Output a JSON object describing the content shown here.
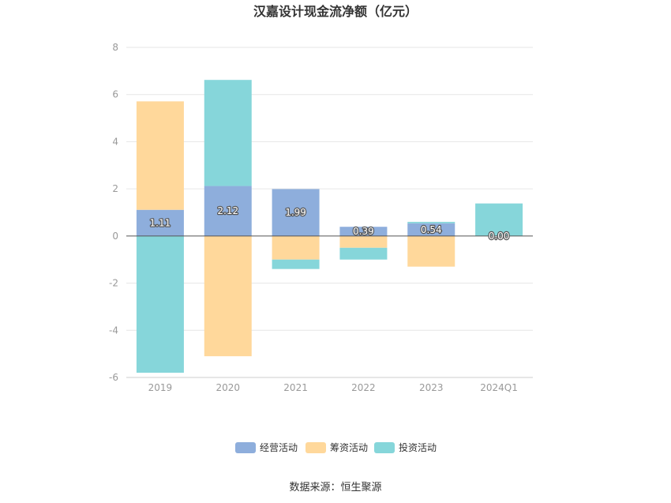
{
  "chart_data": {
    "type": "bar",
    "stacked": true,
    "title": "汉嘉设计现金流净额（亿元）",
    "xlabel": "",
    "ylabel": "",
    "categories": [
      "2019",
      "2020",
      "2021",
      "2022",
      "2023",
      "2024Q1"
    ],
    "ylim": [
      -6,
      8
    ],
    "yticks": [
      8,
      6,
      4,
      2,
      0,
      -2,
      -4,
      -6
    ],
    "grid": true,
    "legend_position": "bottom",
    "series": [
      {
        "name": "经营活动",
        "color": "#8eaedc",
        "values": [
          1.11,
          2.12,
          1.99,
          0.39,
          0.54,
          0.0
        ]
      },
      {
        "name": "筹资活动",
        "color": "#ffd89b",
        "values": [
          4.6,
          -5.1,
          -1.0,
          -0.5,
          -1.3,
          0.0
        ]
      },
      {
        "name": "投资活动",
        "color": "#86d6da",
        "values": [
          -5.8,
          4.5,
          -0.4,
          -0.5,
          0.06,
          1.38
        ]
      }
    ],
    "data_labels": [
      "1.11",
      "2.12",
      "1.99",
      "0.39",
      "0.54",
      "0.00"
    ]
  },
  "footer": {
    "source": "数据来源：恒生聚源"
  }
}
